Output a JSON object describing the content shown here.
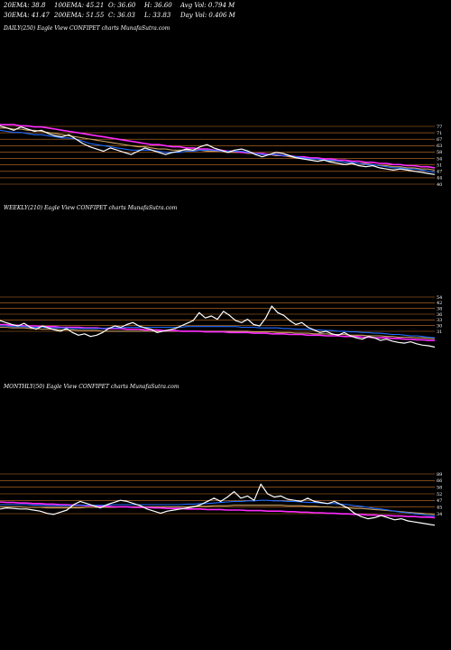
{
  "header": {
    "row1": [
      "20EMA: 38.8",
      "100EMA: 45.21",
      "O: 36.60",
      "H: 36.60",
      "Avg Vol: 0.794  M"
    ],
    "row2": [
      "30EMA: 41.47",
      "200EMA: 51.55",
      "C: 36.03",
      "L: 33.83",
      "Day Vol: 0.406  M"
    ]
  },
  "colors": {
    "price": "#ffffff",
    "ema_fast": "#1e6bff",
    "ema_slow": "#ff2bff",
    "ema_mid": "#c9a063",
    "grid": "#c8742a"
  },
  "chart_data": [
    {
      "type": "line",
      "title": "DAILY(250) Eagle  View  CONFIPET charts MunafaSutra.com",
      "ylim": [
        28,
        90
      ],
      "tick_labels": [
        "77",
        "71",
        "67",
        "63",
        "58",
        "54",
        "51",
        "47",
        "44",
        "40"
      ],
      "series": [
        {
          "role": "price",
          "values": [
            84,
            82,
            80,
            83,
            81,
            79,
            80,
            77,
            75,
            74,
            76,
            72,
            68,
            65,
            63,
            61,
            64,
            62,
            60,
            58,
            61,
            64,
            62,
            60,
            58,
            60,
            61,
            63,
            62,
            65,
            67,
            64,
            62,
            60,
            62,
            63,
            61,
            58,
            56,
            58,
            60,
            59,
            57,
            55,
            54,
            53,
            52,
            53,
            51,
            50,
            49,
            50,
            48,
            47,
            48,
            46,
            45,
            44,
            45,
            44,
            43,
            42,
            41,
            40
          ]
        },
        {
          "role": "ema_fast",
          "values": [
            80,
            79,
            78,
            78,
            77,
            76,
            76,
            75,
            74,
            73,
            73,
            72,
            70,
            68,
            67,
            66,
            65,
            64,
            63,
            62,
            62,
            62,
            62,
            61,
            60,
            60,
            60,
            61,
            61,
            62,
            62,
            62,
            61,
            61,
            61,
            61,
            60,
            59,
            58,
            58,
            58,
            57,
            57,
            56,
            55,
            54,
            54,
            53,
            53,
            52,
            51,
            51,
            50,
            49,
            49,
            48,
            47,
            46,
            46,
            45,
            45,
            44,
            43,
            42
          ]
        },
        {
          "role": "ema_slow",
          "values": [
            85,
            85,
            85,
            84,
            84,
            83,
            83,
            82,
            81,
            80,
            79,
            78,
            77,
            76,
            75,
            74,
            73,
            72,
            71,
            70,
            69,
            68,
            67,
            67,
            66,
            65,
            65,
            64,
            64,
            63,
            63,
            62,
            62,
            61,
            61,
            60,
            60,
            59,
            59,
            58,
            58,
            57,
            57,
            56,
            56,
            55,
            55,
            54,
            54,
            53,
            53,
            52,
            52,
            51,
            51,
            50,
            50,
            49,
            49,
            48,
            48,
            47,
            47,
            46
          ]
        },
        {
          "role": "ema_mid",
          "values": [
            82,
            82,
            81,
            81,
            80,
            80,
            79,
            78,
            77,
            76,
            75,
            74,
            73,
            72,
            71,
            70,
            69,
            68,
            67,
            66,
            65,
            65,
            64,
            63,
            63,
            62,
            62,
            62,
            62,
            62,
            61,
            61,
            61,
            60,
            60,
            60,
            59,
            59,
            58,
            58,
            57,
            57,
            56,
            55,
            55,
            54,
            54,
            53,
            52,
            52,
            51,
            51,
            50,
            50,
            49,
            48,
            48,
            47,
            47,
            46,
            46,
            45,
            45,
            44
          ]
        }
      ]
    },
    {
      "type": "line",
      "title": "WEEKLY(210) Eagle  View  CONFIPET charts MunafaSutra.com",
      "ylim": [
        20,
        110
      ],
      "tick_labels": [
        "54",
        "42",
        "38",
        "36",
        "33",
        "30",
        "31"
      ],
      "series": [
        {
          "role": "price",
          "values": [
            58,
            55,
            52,
            50,
            54,
            48,
            45,
            50,
            47,
            44,
            42,
            46,
            40,
            36,
            38,
            34,
            36,
            40,
            46,
            50,
            48,
            52,
            55,
            50,
            47,
            45,
            40,
            42,
            44,
            46,
            50,
            54,
            58,
            70,
            62,
            65,
            60,
            72,
            66,
            58,
            55,
            60,
            52,
            50,
            62,
            80,
            70,
            66,
            58,
            52,
            55,
            48,
            44,
            40,
            42,
            38,
            36,
            40,
            35,
            32,
            30,
            34,
            32,
            28,
            30,
            27,
            25,
            24,
            26,
            23,
            21,
            20,
            18
          ]
        },
        {
          "role": "ema_fast",
          "values": [
            50,
            50,
            49,
            49,
            49,
            48,
            48,
            48,
            47,
            47,
            47,
            47,
            46,
            46,
            46,
            46,
            46,
            46,
            47,
            47,
            47,
            48,
            48,
            48,
            48,
            48,
            48,
            48,
            48,
            48,
            48,
            49,
            49,
            49,
            49,
            49,
            49,
            49,
            49,
            49,
            48,
            48,
            48,
            47,
            47,
            47,
            47,
            46,
            46,
            45,
            45,
            45,
            44,
            44,
            43,
            43,
            42,
            42,
            41,
            41,
            40,
            40,
            39,
            39,
            38,
            37,
            37,
            36,
            35,
            35,
            34,
            33,
            32
          ]
        },
        {
          "role": "ema_slow",
          "values": [
            52,
            52,
            51,
            51,
            50,
            50,
            50,
            49,
            49,
            49,
            48,
            48,
            48,
            48,
            47,
            47,
            47,
            46,
            46,
            46,
            46,
            45,
            45,
            45,
            44,
            44,
            44,
            43,
            43,
            43,
            42,
            42,
            42,
            42,
            41,
            41,
            41,
            41,
            40,
            40,
            40,
            40,
            39,
            39,
            39,
            38,
            38,
            38,
            37,
            37,
            37,
            36,
            36,
            36,
            35,
            35,
            35,
            34,
            34,
            34,
            33,
            33,
            32,
            32,
            32,
            31,
            31,
            30,
            30,
            29,
            29,
            28,
            28
          ]
        },
        {
          "role": "ema_mid",
          "values": [
            48,
            48,
            47,
            47,
            47,
            46,
            46,
            45,
            45,
            45,
            44,
            44,
            44,
            43,
            43,
            43,
            43,
            42,
            42,
            42,
            42,
            42,
            42,
            42,
            42,
            42,
            42,
            42,
            42,
            42,
            42,
            42,
            42,
            42,
            42,
            42,
            42,
            42,
            42,
            42,
            42,
            42,
            41,
            41,
            41,
            41,
            40,
            40,
            40,
            39,
            39,
            39,
            38,
            38,
            38,
            37,
            37,
            37,
            36,
            36,
            36,
            35,
            35,
            35,
            34,
            34,
            33,
            33,
            33,
            32,
            32,
            31,
            31
          ]
        }
      ]
    },
    {
      "type": "line",
      "title": "MONTHLY(50) Eagle  View  CONFIPET charts MunafaSutra.com",
      "ylim": [
        10,
        120
      ],
      "tick_labels": [
        "89",
        "66",
        "58",
        "52",
        "47",
        "45",
        "34"
      ],
      "series": [
        {
          "role": "price",
          "values": [
            42,
            44,
            43,
            42,
            42,
            40,
            38,
            34,
            32,
            36,
            40,
            50,
            56,
            52,
            48,
            44,
            50,
            54,
            58,
            56,
            52,
            48,
            42,
            38,
            34,
            38,
            40,
            42,
            44,
            46,
            50,
            56,
            62,
            56,
            64,
            74,
            62,
            66,
            58,
            88,
            70,
            64,
            66,
            60,
            58,
            56,
            62,
            56,
            54,
            52,
            56,
            50,
            44,
            34,
            28,
            24,
            26,
            30,
            26,
            22,
            24,
            20,
            18,
            16,
            14,
            12
          ]
        },
        {
          "role": "ema_fast",
          "values": [
            50,
            50,
            50,
            50,
            50,
            49,
            49,
            48,
            48,
            48,
            48,
            48,
            49,
            49,
            49,
            49,
            49,
            50,
            50,
            50,
            50,
            50,
            50,
            50,
            50,
            50,
            50,
            50,
            51,
            51,
            52,
            52,
            53,
            54,
            55,
            56,
            56,
            57,
            57,
            58,
            58,
            57,
            57,
            56,
            56,
            55,
            54,
            54,
            53,
            52,
            52,
            51,
            50,
            48,
            47,
            45,
            43,
            42,
            40,
            38,
            36,
            35,
            33,
            32,
            30,
            29
          ]
        },
        {
          "role": "ema_slow",
          "values": [
            55,
            54,
            54,
            53,
            53,
            52,
            52,
            51,
            51,
            50,
            50,
            49,
            49,
            48,
            48,
            47,
            47,
            46,
            46,
            46,
            45,
            45,
            45,
            44,
            44,
            43,
            43,
            43,
            42,
            42,
            42,
            41,
            41,
            41,
            40,
            40,
            40,
            39,
            39,
            39,
            38,
            38,
            38,
            37,
            37,
            36,
            36,
            35,
            35,
            34,
            34,
            33,
            33,
            32,
            32,
            31,
            31,
            30,
            30,
            29,
            29,
            28,
            28,
            27,
            27,
            26
          ]
        },
        {
          "role": "ema_mid",
          "values": [
            46,
            46,
            46,
            46,
            45,
            45,
            45,
            44,
            44,
            44,
            44,
            44,
            44,
            45,
            45,
            45,
            45,
            45,
            46,
            46,
            46,
            46,
            46,
            46,
            46,
            46,
            46,
            46,
            46,
            47,
            47,
            47,
            48,
            48,
            48,
            49,
            49,
            49,
            49,
            49,
            49,
            49,
            49,
            48,
            48,
            48,
            47,
            47,
            46,
            46,
            45,
            45,
            44,
            43,
            43,
            42,
            41,
            40,
            39,
            38,
            37,
            36,
            35,
            34,
            33,
            32
          ]
        }
      ]
    }
  ]
}
